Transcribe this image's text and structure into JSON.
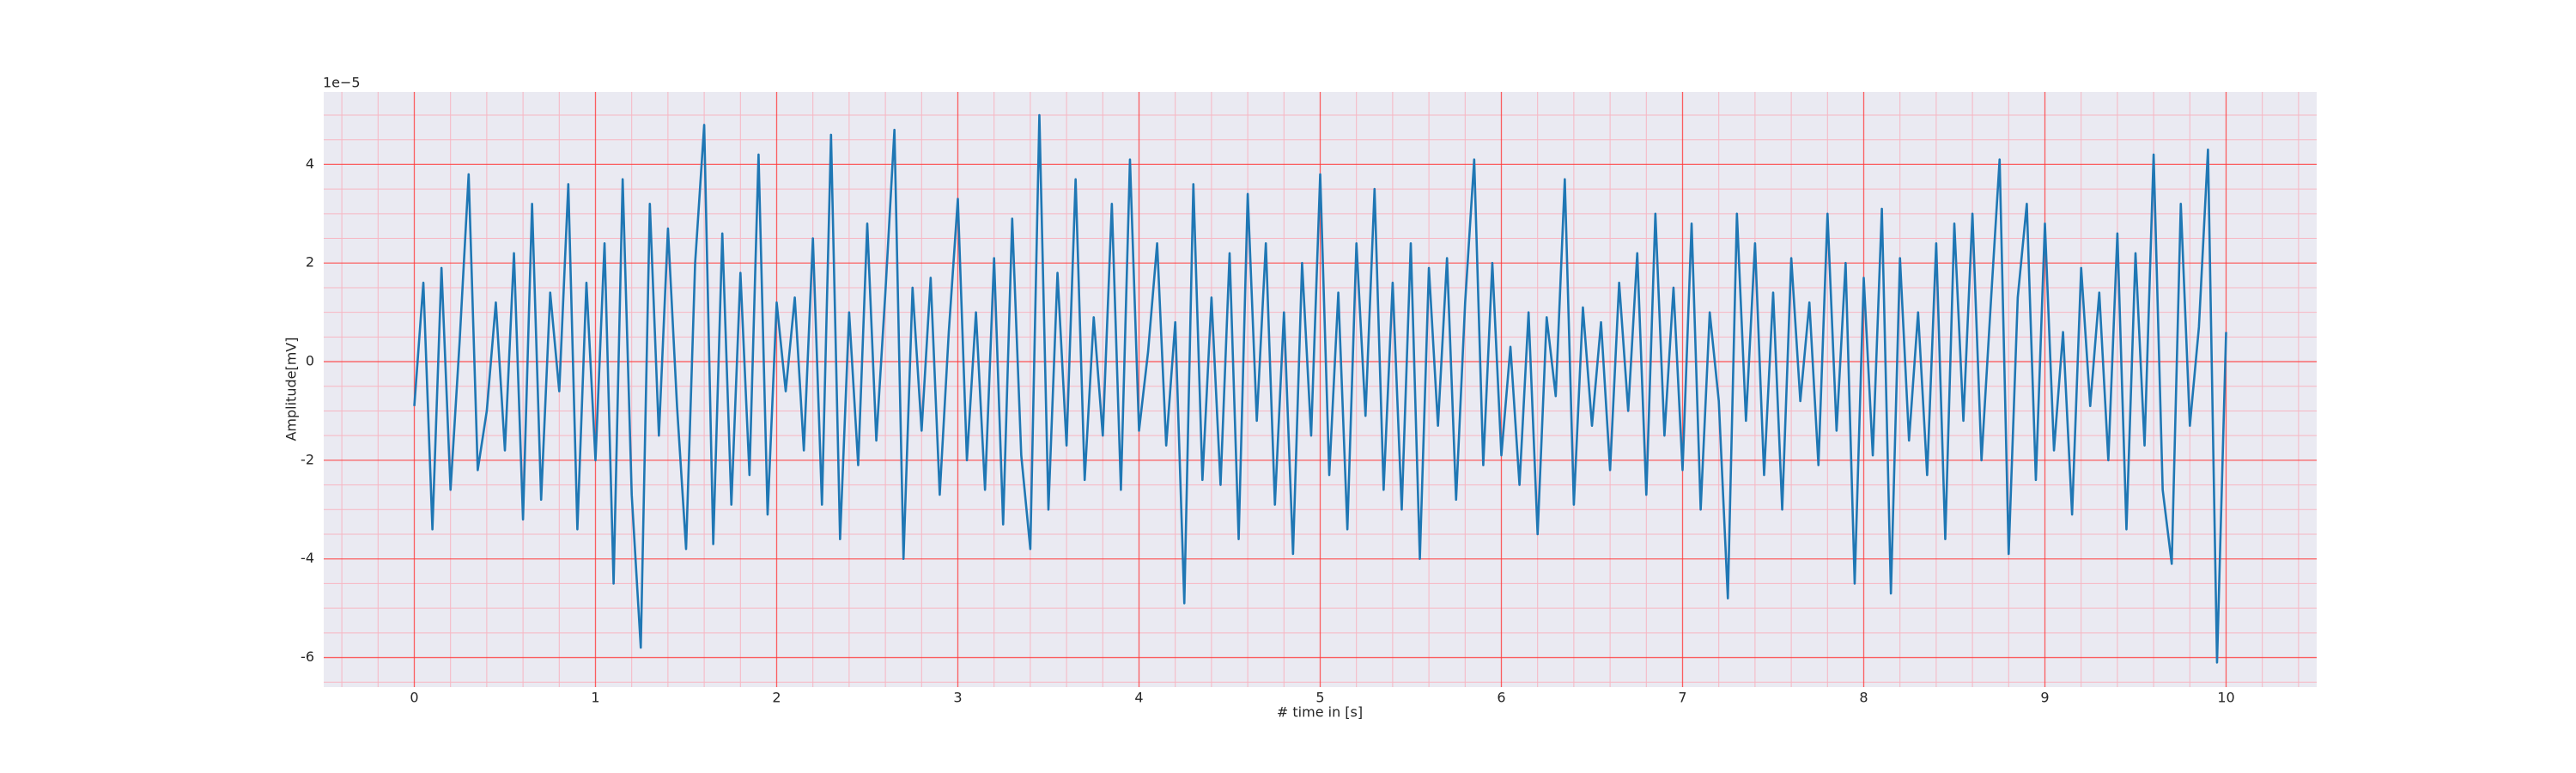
{
  "chart_data": {
    "type": "line",
    "x_label": "# time in [s]",
    "y_label": "Amplitude[mV]",
    "y_offset_label": "1e−5",
    "xlim": [
      -0.5,
      10.5
    ],
    "ylim": [
      -6.6,
      5.47
    ],
    "xticks": [
      0,
      1,
      2,
      3,
      4,
      5,
      6,
      7,
      8,
      9,
      10
    ],
    "yticks": [
      -6,
      -4,
      -2,
      0,
      2,
      4
    ],
    "minor_xticks": [
      -0.4,
      -0.2,
      0.2,
      0.4,
      0.6,
      0.8,
      1.2,
      1.4,
      1.6,
      1.8,
      2.2,
      2.4,
      2.6,
      2.8,
      3.2,
      3.4,
      3.6,
      3.8,
      4.2,
      4.4,
      4.6,
      4.8,
      5.2,
      5.4,
      5.6,
      5.8,
      6.2,
      6.4,
      6.6,
      6.8,
      7.2,
      7.4,
      7.6,
      7.8,
      8.2,
      8.4,
      8.6,
      8.8,
      9.2,
      9.4,
      9.6,
      9.8,
      10.2,
      10.4
    ],
    "minor_yticks": [
      -6.5,
      -5.5,
      -5,
      -4.5,
      -3.5,
      -3,
      -2.5,
      -1.5,
      -1,
      -0.5,
      0.5,
      1,
      1.5,
      2.5,
      3,
      3.5,
      4.5,
      5
    ],
    "grid": true,
    "grid_color": "#ff3b3b",
    "minor_grid_color": "#f7b6c2",
    "background": "#eaeaf2",
    "x": [
      0,
      0.05,
      0.1,
      0.15,
      0.2,
      0.25,
      0.3,
      0.35,
      0.4,
      0.45,
      0.5,
      0.55,
      0.6,
      0.65,
      0.7,
      0.75,
      0.8,
      0.85,
      0.9,
      0.95,
      1,
      1.05,
      1.1,
      1.15,
      1.2,
      1.25,
      1.3,
      1.35,
      1.4,
      1.45,
      1.5,
      1.55,
      1.6,
      1.65,
      1.7,
      1.75,
      1.8,
      1.85,
      1.9,
      1.95,
      2,
      2.05,
      2.1,
      2.15,
      2.2,
      2.25,
      2.3,
      2.35,
      2.4,
      2.45,
      2.5,
      2.55,
      2.6,
      2.65,
      2.7,
      2.75,
      2.8,
      2.85,
      2.9,
      2.95,
      3,
      3.05,
      3.1,
      3.15,
      3.2,
      3.25,
      3.3,
      3.35,
      3.4,
      3.45,
      3.5,
      3.55,
      3.6,
      3.65,
      3.7,
      3.75,
      3.8,
      3.85,
      3.9,
      3.95,
      4,
      4.05,
      4.1,
      4.15,
      4.2,
      4.25,
      4.3,
      4.35,
      4.4,
      4.45,
      4.5,
      4.55,
      4.6,
      4.65,
      4.7,
      4.75,
      4.8,
      4.85,
      4.9,
      4.95,
      5,
      5.05,
      5.1,
      5.15,
      5.2,
      5.25,
      5.3,
      5.35,
      5.4,
      5.45,
      5.5,
      5.55,
      5.6,
      5.65,
      5.7,
      5.75,
      5.8,
      5.85,
      5.9,
      5.95,
      6,
      6.05,
      6.1,
      6.15,
      6.2,
      6.25,
      6.3,
      6.35,
      6.4,
      6.45,
      6.5,
      6.55,
      6.6,
      6.65,
      6.7,
      6.75,
      6.8,
      6.85,
      6.9,
      6.95,
      7,
      7.05,
      7.1,
      7.15,
      7.2,
      7.25,
      7.3,
      7.35,
      7.4,
      7.45,
      7.5,
      7.55,
      7.6,
      7.65,
      7.7,
      7.75,
      7.8,
      7.85,
      7.9,
      7.95,
      8,
      8.05,
      8.1,
      8.15,
      8.2,
      8.25,
      8.3,
      8.35,
      8.4,
      8.45,
      8.5,
      8.55,
      8.6,
      8.65,
      8.7,
      8.75,
      8.8,
      8.85,
      8.9,
      8.95,
      9,
      9.05,
      9.1,
      9.15,
      9.2,
      9.25,
      9.3,
      9.35,
      9.4,
      9.45,
      9.5,
      9.55,
      9.6,
      9.65,
      9.7,
      9.75,
      9.8,
      9.85,
      9.9,
      9.95,
      10
    ],
    "series": [
      {
        "color": "#1f77b4",
        "values": [
          -0.9,
          1.6,
          -3.4,
          1.9,
          -2.6,
          0.4,
          3.8,
          -2.2,
          -1.0,
          1.2,
          -1.8,
          2.2,
          -3.2,
          3.2,
          -2.8,
          1.4,
          -0.6,
          3.6,
          -3.4,
          1.6,
          -2.0,
          2.4,
          -4.5,
          3.7,
          -2.7,
          -5.8,
          3.2,
          -1.5,
          2.7,
          -0.9,
          -3.8,
          2.0,
          4.8,
          -3.7,
          2.6,
          -2.9,
          1.8,
          -2.3,
          4.2,
          -3.1,
          1.2,
          -0.6,
          1.3,
          -1.8,
          2.5,
          -2.9,
          4.6,
          -3.6,
          1.0,
          -2.1,
          2.8,
          -1.6,
          1.4,
          4.7,
          -4.0,
          1.5,
          -1.4,
          1.7,
          -2.7,
          0.6,
          3.3,
          -2.0,
          1.0,
          -2.6,
          2.1,
          -3.3,
          2.9,
          -1.9,
          -3.8,
          5.0,
          -3.0,
          1.8,
          -1.7,
          3.7,
          -2.4,
          0.9,
          -1.5,
          3.2,
          -2.6,
          4.1,
          -1.4,
          0.2,
          2.4,
          -1.7,
          0.8,
          -4.9,
          3.6,
          -2.4,
          1.3,
          -2.5,
          2.2,
          -3.6,
          3.4,
          -1.2,
          2.4,
          -2.9,
          1.0,
          -3.9,
          2.0,
          -1.5,
          3.8,
          -2.3,
          1.4,
          -3.4,
          2.4,
          -1.1,
          3.5,
          -2.6,
          1.6,
          -3.0,
          2.4,
          -4.0,
          1.9,
          -1.3,
          2.1,
          -2.8,
          1.2,
          4.1,
          -2.1,
          2.0,
          -1.9,
          0.3,
          -2.5,
          1.0,
          -3.5,
          0.9,
          -0.7,
          3.7,
          -2.9,
          1.1,
          -1.3,
          0.8,
          -2.2,
          1.6,
          -1.0,
          2.2,
          -2.7,
          3.0,
          -1.5,
          1.5,
          -2.2,
          2.8,
          -3.0,
          1.0,
          -0.8,
          -4.8,
          3.0,
          -1.2,
          2.4,
          -2.3,
          1.4,
          -3.0,
          2.1,
          -0.8,
          1.2,
          -2.1,
          3.0,
          -1.4,
          2.0,
          -4.5,
          1.7,
          -1.9,
          3.1,
          -4.7,
          2.1,
          -1.6,
          1.0,
          -2.3,
          2.4,
          -3.6,
          2.8,
          -1.2,
          3.0,
          -2.0,
          1.1,
          4.1,
          -3.9,
          1.3,
          3.2,
          -2.4,
          2.8,
          -1.8,
          0.6,
          -3.1,
          1.9,
          -0.9,
          1.4,
          -2.0,
          2.6,
          -3.4,
          2.2,
          -1.7,
          4.2,
          -2.6,
          -4.1,
          3.2,
          -1.3,
          0.7,
          4.3,
          -6.1,
          0.6
        ]
      }
    ]
  }
}
